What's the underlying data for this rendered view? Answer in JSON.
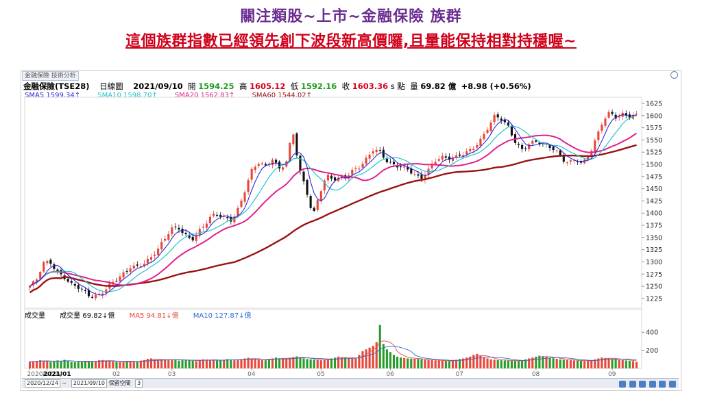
{
  "headline": {
    "line1": "關注類股~上市~金融保險 族群",
    "line2": "這個族群指數已經領先創下波段新高價囉,且量能保持相對持穩喔~"
  },
  "window": {
    "title": "金融保險 技術分析"
  },
  "info": {
    "name": "金融保險(TSE28)",
    "period": "日線圖",
    "date": "2021/09/10",
    "open_label": "開",
    "open": "1594.25",
    "high_label": "高",
    "high": "1605.12",
    "low_label": "低",
    "low": "1592.16",
    "close_label": "收",
    "close": "1603.36",
    "unit": "s 點",
    "volume_label": "量",
    "volume": "69.82 億",
    "change": "+8.98 (+0.56%)"
  },
  "ma_legend": {
    "sma5": "SMA5 1599.34↑",
    "sma10": "SMA10 1598.70↑",
    "sma20": "SMA20 1562.83↑",
    "sma60": "SMA60 1544.02↑"
  },
  "vol_legend": {
    "label": "成交量",
    "vol": "成交量 69.82↓億",
    "ma5": "MA5 94.81↓億",
    "ma10": "MA10 127.87↓億"
  },
  "toolbar": {
    "from": "2020/12/24",
    "to": "2021/09/10",
    "space_label": "保留空間",
    "space_value": "3"
  },
  "colors": {
    "up": "#e8483a",
    "down": "#111111",
    "sma5": "#2a2ad8",
    "sma10": "#22c4cc",
    "sma20": "#e0208c",
    "sma60": "#9a1212",
    "vol_up": "#e8483a",
    "vol_down": "#2a9c2a"
  },
  "chart_data": {
    "type": "candlestick",
    "price_ticks": [
      1225,
      1250,
      1275,
      1300,
      1325,
      1350,
      1375,
      1400,
      1425,
      1450,
      1475,
      1500,
      1525,
      1550,
      1575,
      1600,
      1625
    ],
    "ylim": [
      1208,
      1632
    ],
    "volume_ticks": [
      200,
      400
    ],
    "volume_ylim": [
      0,
      560
    ],
    "x_labels": [
      {
        "label": "2020/12/24",
        "i": 0
      },
      {
        "label": "2021/01",
        "i": 5
      },
      {
        "label": "02",
        "i": 25
      },
      {
        "label": "03",
        "i": 41
      },
      {
        "label": "04",
        "i": 64
      },
      {
        "label": "05",
        "i": 84
      },
      {
        "label": "06",
        "i": 104
      },
      {
        "label": "07",
        "i": 124
      },
      {
        "label": "08",
        "i": 146
      },
      {
        "label": "09",
        "i": 168
      }
    ],
    "key_prices": [
      1250,
      1262,
      1296,
      1300,
      1281,
      1272,
      1255,
      1248,
      1238,
      1228,
      1232,
      1242,
      1256,
      1263,
      1275,
      1290,
      1292,
      1300,
      1310,
      1325,
      1345,
      1368,
      1372,
      1358,
      1345,
      1360,
      1375,
      1395,
      1398,
      1392,
      1386,
      1410,
      1448,
      1490,
      1505,
      1498,
      1512,
      1490,
      1500,
      1568,
      1490,
      1450,
      1395,
      1440,
      1475,
      1468,
      1472,
      1478,
      1490,
      1495,
      1510,
      1530,
      1525,
      1508,
      1500,
      1495,
      1488,
      1478,
      1470,
      1488,
      1508,
      1515,
      1510,
      1512,
      1520,
      1528,
      1538,
      1552,
      1575,
      1598,
      1592,
      1578,
      1548,
      1530,
      1540,
      1545,
      1541,
      1538,
      1532,
      1510,
      1502,
      1508,
      1500,
      1522,
      1555,
      1590,
      1605,
      1594,
      1602,
      1600,
      1603.36
    ],
    "volume": [
      75,
      78,
      82,
      90,
      85,
      80,
      72,
      78,
      88,
      84,
      95,
      80,
      70,
      68,
      72,
      76,
      80,
      78,
      75,
      82,
      90,
      92,
      85,
      80,
      76,
      72,
      70,
      68,
      74,
      80,
      82,
      78,
      86,
      92,
      105,
      110,
      98,
      92,
      88,
      95,
      100,
      96,
      92,
      86,
      90,
      96,
      88,
      84,
      80,
      92,
      100,
      98,
      95,
      90,
      86,
      90,
      96,
      102,
      96,
      90,
      98,
      102,
      110,
      118,
      108,
      100,
      96,
      92,
      90,
      100,
      110,
      120,
      112,
      105,
      108,
      118,
      126,
      132,
      120,
      110,
      104,
      100,
      96,
      92,
      90,
      96,
      102,
      110,
      118,
      130,
      124,
      118,
      112,
      106,
      110,
      150,
      190,
      210,
      230,
      250,
      290,
      480,
      270,
      210,
      180,
      150,
      130,
      120,
      115,
      110,
      108,
      106,
      104,
      100,
      96,
      92,
      90,
      88,
      86,
      84,
      82,
      80,
      88,
      96,
      104,
      110,
      120,
      130,
      150,
      160,
      140,
      120,
      110,
      100,
      96,
      92,
      90,
      88,
      86,
      84,
      82,
      80,
      90,
      100,
      110,
      120,
      130,
      140,
      135,
      125,
      118,
      112,
      106,
      100,
      96,
      92,
      90,
      88,
      86,
      84,
      82,
      80,
      90,
      100,
      110,
      120,
      115,
      110,
      105,
      100,
      96,
      92,
      88,
      84,
      80,
      70
    ]
  }
}
